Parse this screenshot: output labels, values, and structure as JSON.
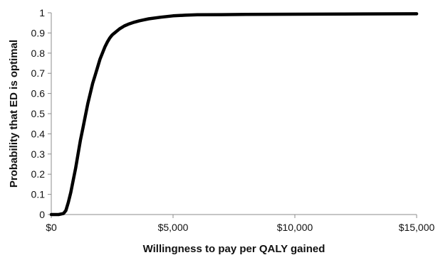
{
  "chart_data": {
    "type": "line",
    "title": "",
    "xlabel": "Willingness to pay per QALY gained",
    "ylabel": "Probability that ED is  optimal",
    "xlim": [
      0,
      15000
    ],
    "ylim": [
      0,
      1
    ],
    "x_ticks": [
      0,
      5000,
      10000,
      15000
    ],
    "x_tick_labels": [
      "$0",
      "$5,000",
      "$10,000",
      "$15,000"
    ],
    "y_ticks": [
      0,
      0.1,
      0.2,
      0.3,
      0.4,
      0.5,
      0.6,
      0.7,
      0.8,
      0.9,
      1
    ],
    "y_tick_labels": [
      "0",
      "0.1",
      "0.2",
      "0.3",
      "0.4",
      "0.5",
      "0.6",
      "0.7",
      "0.8",
      "0.9",
      "1"
    ],
    "grid": false,
    "legend": "none",
    "series": [
      {
        "color": "#000000",
        "x": [
          0,
          300,
          500,
          600,
          700,
          800,
          900,
          1000,
          1100,
          1200,
          1300,
          1400,
          1500,
          1600,
          1700,
          1800,
          1900,
          2000,
          2100,
          2200,
          2300,
          2400,
          2500,
          2600,
          2800,
          3000,
          3200,
          3400,
          3600,
          3800,
          4000,
          4500,
          5000,
          5500,
          6000,
          7000,
          8000,
          10000,
          12000,
          15000
        ],
        "y": [
          0,
          0,
          0.005,
          0.02,
          0.06,
          0.11,
          0.17,
          0.23,
          0.3,
          0.37,
          0.43,
          0.49,
          0.55,
          0.6,
          0.65,
          0.69,
          0.73,
          0.77,
          0.8,
          0.83,
          0.855,
          0.875,
          0.89,
          0.9,
          0.92,
          0.935,
          0.945,
          0.953,
          0.96,
          0.965,
          0.97,
          0.978,
          0.985,
          0.988,
          0.99,
          0.991,
          0.992,
          0.993,
          0.994,
          0.995
        ]
      }
    ]
  }
}
